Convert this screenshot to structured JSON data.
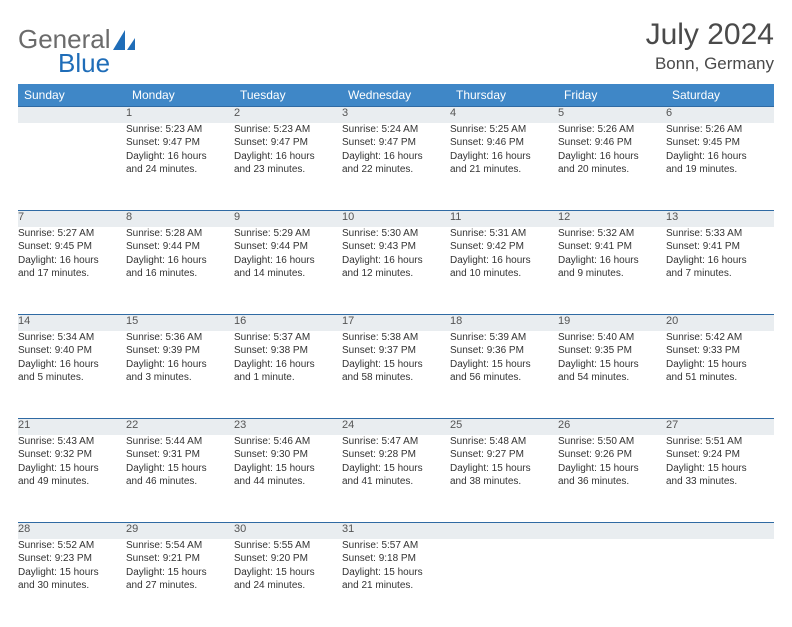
{
  "brand": {
    "part1": "General",
    "part2": "Blue"
  },
  "title": "July 2024",
  "location": "Bonn, Germany",
  "colors": {
    "header_bg": "#3f87c7",
    "header_fg": "#ffffff",
    "daynum_bg": "#e9edf0",
    "daynum_border": "#2f6aa3",
    "text": "#333333",
    "logo_gray": "#6b6b6b",
    "logo_blue": "#1f6db8"
  },
  "dayHeaders": [
    "Sunday",
    "Monday",
    "Tuesday",
    "Wednesday",
    "Thursday",
    "Friday",
    "Saturday"
  ],
  "weeks": [
    {
      "nums": [
        "",
        "1",
        "2",
        "3",
        "4",
        "5",
        "6"
      ],
      "cells": [
        {
          "l1": "",
          "l2": "",
          "l3": "",
          "l4": ""
        },
        {
          "l1": "Sunrise: 5:23 AM",
          "l2": "Sunset: 9:47 PM",
          "l3": "Daylight: 16 hours",
          "l4": "and 24 minutes."
        },
        {
          "l1": "Sunrise: 5:23 AM",
          "l2": "Sunset: 9:47 PM",
          "l3": "Daylight: 16 hours",
          "l4": "and 23 minutes."
        },
        {
          "l1": "Sunrise: 5:24 AM",
          "l2": "Sunset: 9:47 PM",
          "l3": "Daylight: 16 hours",
          "l4": "and 22 minutes."
        },
        {
          "l1": "Sunrise: 5:25 AM",
          "l2": "Sunset: 9:46 PM",
          "l3": "Daylight: 16 hours",
          "l4": "and 21 minutes."
        },
        {
          "l1": "Sunrise: 5:26 AM",
          "l2": "Sunset: 9:46 PM",
          "l3": "Daylight: 16 hours",
          "l4": "and 20 minutes."
        },
        {
          "l1": "Sunrise: 5:26 AM",
          "l2": "Sunset: 9:45 PM",
          "l3": "Daylight: 16 hours",
          "l4": "and 19 minutes."
        }
      ]
    },
    {
      "nums": [
        "7",
        "8",
        "9",
        "10",
        "11",
        "12",
        "13"
      ],
      "cells": [
        {
          "l1": "Sunrise: 5:27 AM",
          "l2": "Sunset: 9:45 PM",
          "l3": "Daylight: 16 hours",
          "l4": "and 17 minutes."
        },
        {
          "l1": "Sunrise: 5:28 AM",
          "l2": "Sunset: 9:44 PM",
          "l3": "Daylight: 16 hours",
          "l4": "and 16 minutes."
        },
        {
          "l1": "Sunrise: 5:29 AM",
          "l2": "Sunset: 9:44 PM",
          "l3": "Daylight: 16 hours",
          "l4": "and 14 minutes."
        },
        {
          "l1": "Sunrise: 5:30 AM",
          "l2": "Sunset: 9:43 PM",
          "l3": "Daylight: 16 hours",
          "l4": "and 12 minutes."
        },
        {
          "l1": "Sunrise: 5:31 AM",
          "l2": "Sunset: 9:42 PM",
          "l3": "Daylight: 16 hours",
          "l4": "and 10 minutes."
        },
        {
          "l1": "Sunrise: 5:32 AM",
          "l2": "Sunset: 9:41 PM",
          "l3": "Daylight: 16 hours",
          "l4": "and 9 minutes."
        },
        {
          "l1": "Sunrise: 5:33 AM",
          "l2": "Sunset: 9:41 PM",
          "l3": "Daylight: 16 hours",
          "l4": "and 7 minutes."
        }
      ]
    },
    {
      "nums": [
        "14",
        "15",
        "16",
        "17",
        "18",
        "19",
        "20"
      ],
      "cells": [
        {
          "l1": "Sunrise: 5:34 AM",
          "l2": "Sunset: 9:40 PM",
          "l3": "Daylight: 16 hours",
          "l4": "and 5 minutes."
        },
        {
          "l1": "Sunrise: 5:36 AM",
          "l2": "Sunset: 9:39 PM",
          "l3": "Daylight: 16 hours",
          "l4": "and 3 minutes."
        },
        {
          "l1": "Sunrise: 5:37 AM",
          "l2": "Sunset: 9:38 PM",
          "l3": "Daylight: 16 hours",
          "l4": "and 1 minute."
        },
        {
          "l1": "Sunrise: 5:38 AM",
          "l2": "Sunset: 9:37 PM",
          "l3": "Daylight: 15 hours",
          "l4": "and 58 minutes."
        },
        {
          "l1": "Sunrise: 5:39 AM",
          "l2": "Sunset: 9:36 PM",
          "l3": "Daylight: 15 hours",
          "l4": "and 56 minutes."
        },
        {
          "l1": "Sunrise: 5:40 AM",
          "l2": "Sunset: 9:35 PM",
          "l3": "Daylight: 15 hours",
          "l4": "and 54 minutes."
        },
        {
          "l1": "Sunrise: 5:42 AM",
          "l2": "Sunset: 9:33 PM",
          "l3": "Daylight: 15 hours",
          "l4": "and 51 minutes."
        }
      ]
    },
    {
      "nums": [
        "21",
        "22",
        "23",
        "24",
        "25",
        "26",
        "27"
      ],
      "cells": [
        {
          "l1": "Sunrise: 5:43 AM",
          "l2": "Sunset: 9:32 PM",
          "l3": "Daylight: 15 hours",
          "l4": "and 49 minutes."
        },
        {
          "l1": "Sunrise: 5:44 AM",
          "l2": "Sunset: 9:31 PM",
          "l3": "Daylight: 15 hours",
          "l4": "and 46 minutes."
        },
        {
          "l1": "Sunrise: 5:46 AM",
          "l2": "Sunset: 9:30 PM",
          "l3": "Daylight: 15 hours",
          "l4": "and 44 minutes."
        },
        {
          "l1": "Sunrise: 5:47 AM",
          "l2": "Sunset: 9:28 PM",
          "l3": "Daylight: 15 hours",
          "l4": "and 41 minutes."
        },
        {
          "l1": "Sunrise: 5:48 AM",
          "l2": "Sunset: 9:27 PM",
          "l3": "Daylight: 15 hours",
          "l4": "and 38 minutes."
        },
        {
          "l1": "Sunrise: 5:50 AM",
          "l2": "Sunset: 9:26 PM",
          "l3": "Daylight: 15 hours",
          "l4": "and 36 minutes."
        },
        {
          "l1": "Sunrise: 5:51 AM",
          "l2": "Sunset: 9:24 PM",
          "l3": "Daylight: 15 hours",
          "l4": "and 33 minutes."
        }
      ]
    },
    {
      "nums": [
        "28",
        "29",
        "30",
        "31",
        "",
        "",
        ""
      ],
      "cells": [
        {
          "l1": "Sunrise: 5:52 AM",
          "l2": "Sunset: 9:23 PM",
          "l3": "Daylight: 15 hours",
          "l4": "and 30 minutes."
        },
        {
          "l1": "Sunrise: 5:54 AM",
          "l2": "Sunset: 9:21 PM",
          "l3": "Daylight: 15 hours",
          "l4": "and 27 minutes."
        },
        {
          "l1": "Sunrise: 5:55 AM",
          "l2": "Sunset: 9:20 PM",
          "l3": "Daylight: 15 hours",
          "l4": "and 24 minutes."
        },
        {
          "l1": "Sunrise: 5:57 AM",
          "l2": "Sunset: 9:18 PM",
          "l3": "Daylight: 15 hours",
          "l4": "and 21 minutes."
        },
        {
          "l1": "",
          "l2": "",
          "l3": "",
          "l4": ""
        },
        {
          "l1": "",
          "l2": "",
          "l3": "",
          "l4": ""
        },
        {
          "l1": "",
          "l2": "",
          "l3": "",
          "l4": ""
        }
      ]
    }
  ]
}
